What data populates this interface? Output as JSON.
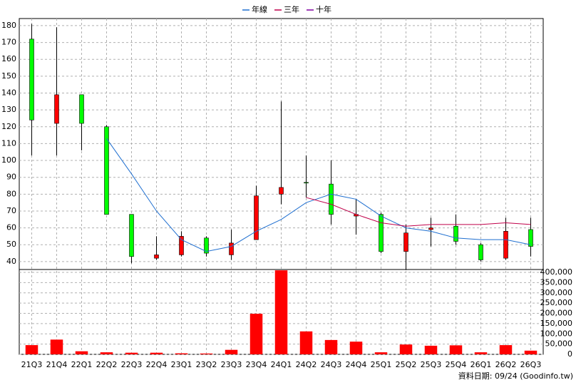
{
  "chart_data": {
    "type": "candlestick",
    "categories": [
      "21Q3",
      "21Q4",
      "22Q1",
      "22Q2",
      "22Q3",
      "22Q4",
      "23Q1",
      "23Q2",
      "23Q3",
      "23Q4",
      "24Q1",
      "24Q2",
      "24Q3",
      "24Q4",
      "25Q1",
      "25Q2",
      "25Q3",
      "25Q4",
      "26Q1",
      "26Q2",
      "26Q3"
    ],
    "open": [
      124,
      139,
      122,
      68,
      43,
      44,
      55,
      45,
      51,
      79,
      84,
      87,
      68,
      68,
      46,
      57,
      60,
      52,
      41,
      58,
      49
    ],
    "high": [
      181,
      179,
      139,
      121,
      68,
      55,
      58,
      55,
      59,
      85,
      135,
      103,
      100,
      77,
      69,
      62,
      66,
      68,
      51,
      66,
      66
    ],
    "low": [
      103,
      103,
      106,
      68,
      39,
      41,
      43,
      43,
      41,
      53,
      74,
      78,
      62,
      56,
      45,
      35,
      49,
      50,
      40,
      41,
      43
    ],
    "close": [
      172,
      122,
      139,
      120,
      68,
      42,
      44,
      54,
      44,
      53,
      80,
      87,
      86,
      67,
      68,
      46,
      59,
      61,
      50,
      42,
      59
    ],
    "up_color": "#00ff00",
    "down_color": "#ff0000",
    "volume": [
      45000,
      72000,
      15000,
      10000,
      8000,
      8000,
      5000,
      4000,
      22000,
      198000,
      410000,
      112000,
      70000,
      62000,
      10000,
      48000,
      42000,
      44000,
      10000,
      45000,
      18000
    ],
    "volume_color": "#ff0000",
    "series": [
      {
        "name": "年線",
        "color": "#1f6fd0",
        "values": [
          null,
          null,
          null,
          113,
          92,
          70,
          53,
          46,
          49,
          58,
          65,
          75,
          80,
          77,
          67,
          60,
          58,
          54,
          53,
          53,
          50
        ]
      },
      {
        "name": "三年",
        "color": "#c0004a",
        "values": [
          null,
          null,
          null,
          null,
          null,
          null,
          null,
          null,
          null,
          null,
          null,
          78,
          74,
          68,
          63,
          61,
          62,
          62,
          62,
          63,
          62
        ]
      },
      {
        "name": "十年",
        "color": "#8000a0",
        "values": [
          null,
          null,
          null,
          null,
          null,
          null,
          null,
          null,
          null,
          null,
          null,
          null,
          null,
          null,
          null,
          null,
          null,
          null,
          null,
          null,
          null
        ]
      }
    ],
    "ylim": [
      35.3,
      184.2
    ],
    "yticks": [
      40,
      50,
      60,
      70,
      80,
      90,
      100,
      110,
      120,
      130,
      140,
      150,
      160,
      170,
      180
    ],
    "y2lim": [
      0,
      414000
    ],
    "y2ticks": [
      0,
      {
        "value": 50000,
        "label": "50,000"
      },
      {
        "value": 100000,
        "label": "100,000"
      },
      {
        "value": 150000,
        "label": "150,000"
      },
      {
        "value": 200000,
        "label": "200,000"
      },
      {
        "value": 250000,
        "label": "250,000"
      },
      {
        "value": 300000,
        "label": "300,000"
      },
      {
        "value": 350000,
        "label": "350,000"
      },
      {
        "value": 400000,
        "label": "400,000"
      }
    ],
    "grid": true,
    "footer": "資料日期: 09/24 (Goodinfo.tw)"
  }
}
